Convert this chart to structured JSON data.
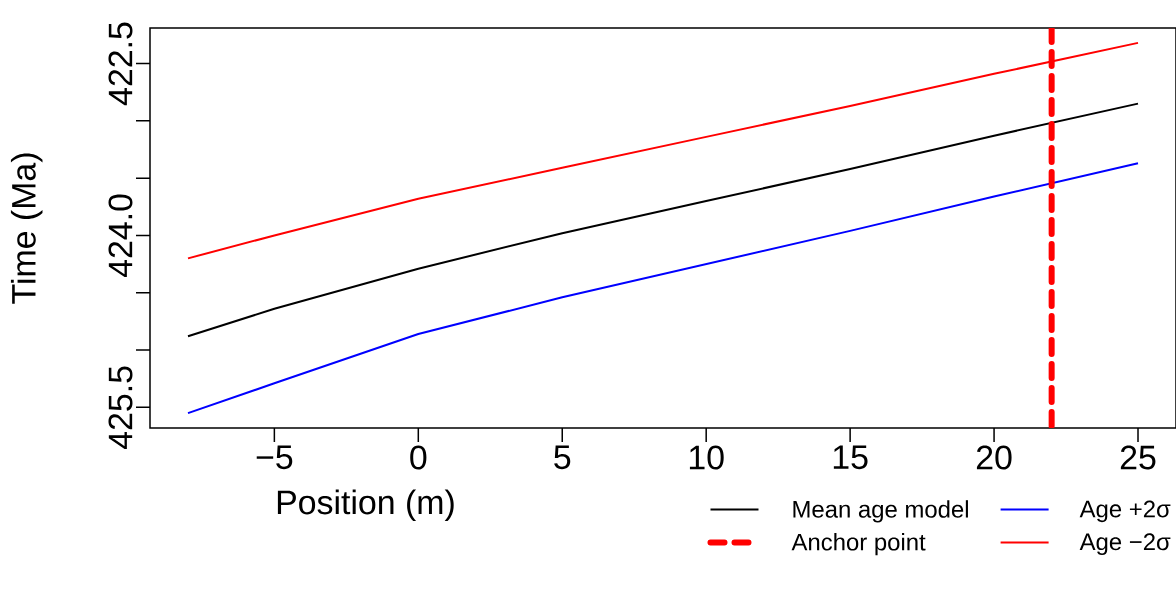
{
  "chart_data": {
    "type": "line",
    "xlabel": "Position (m)",
    "ylabel": "Time (Ma)",
    "x": [
      -8,
      -5,
      0,
      5,
      10,
      15,
      20,
      25
    ],
    "series": [
      {
        "name": "Mean age model",
        "color": "#000000",
        "values": [
          424.88,
          424.64,
          424.29,
          423.98,
          423.7,
          423.42,
          423.13,
          422.85
        ]
      },
      {
        "name": "Age +2σ",
        "color": "#0000ff",
        "values": [
          425.55,
          425.29,
          424.86,
          424.54,
          424.25,
          423.96,
          423.66,
          423.37
        ]
      },
      {
        "name": "Age −2σ",
        "color": "#ff0000",
        "values": [
          424.2,
          424.0,
          423.68,
          423.41,
          423.14,
          422.87,
          422.59,
          422.32
        ]
      }
    ],
    "ref_lines": [
      {
        "axis": "x",
        "value": 22,
        "label": "Anchor point",
        "color": "#ff0000",
        "line_style": "dashed"
      }
    ],
    "xlim": [
      -9.32,
      26.32
    ],
    "ylim": [
      425.68,
      422.19
    ],
    "xticks": [
      {
        "value": -5,
        "label": "−5"
      },
      0,
      5,
      10,
      15,
      20,
      25
    ],
    "yticks": [
      {
        "value": 422.5,
        "label": "422.5"
      },
      {
        "value": 423.0,
        "label": null
      },
      {
        "value": 423.5,
        "label": null
      },
      {
        "value": 424.0,
        "label": "424.0"
      },
      {
        "value": 424.5,
        "label": null
      },
      {
        "value": 425.0,
        "label": null
      },
      {
        "value": 425.5,
        "label": "425.5"
      }
    ],
    "grid": false,
    "legend": "bottom right",
    "marker": "none",
    "line_style": "solid"
  }
}
